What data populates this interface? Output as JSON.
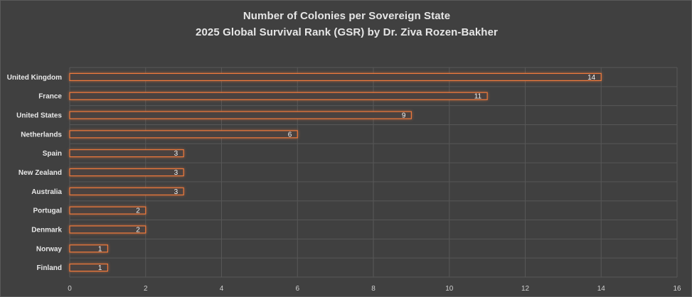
{
  "chart_data": {
    "type": "bar",
    "orientation": "horizontal",
    "title": "Number of Colonies per Sovereign State",
    "subtitle": "2025 Global Survival Rank (GSR) by Dr. Ziva Rozen-Bakher",
    "categories": [
      "United Kingdom",
      "France",
      "United States",
      "Netherlands",
      "Spain",
      "New Zealand",
      "Australia",
      "Portugal",
      "Denmark",
      "Norway",
      "Finland"
    ],
    "values": [
      14,
      11,
      9,
      6,
      3,
      3,
      3,
      2,
      2,
      1,
      1
    ],
    "xlim": [
      0,
      16
    ],
    "xticks": [
      0,
      2,
      4,
      6,
      8,
      10,
      12,
      14,
      16
    ],
    "xlabel": "",
    "ylabel": "",
    "grid": true,
    "data_labels": true,
    "legend": "none",
    "colors": {
      "background": "#404040",
      "bar_outline": "#f07a3c",
      "bar_fill": "#4a4240",
      "text": "#e8e8e8",
      "grid": "#575757"
    }
  }
}
